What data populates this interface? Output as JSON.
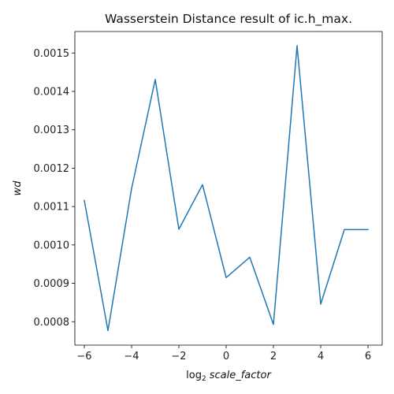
{
  "chart_data": {
    "type": "line",
    "title": "Wasserstein Distance result of ic.h_max.",
    "xlabel_prefix": "log",
    "xlabel_sub": "2",
    "xlabel_var": "scale_factor",
    "ylabel": "wd",
    "xlim": [
      -6.4,
      6.6
    ],
    "ylim": [
      0.000739,
      0.001556
    ],
    "x_ticks": [
      -6,
      -4,
      -2,
      0,
      2,
      4,
      6
    ],
    "x_tick_labels": [
      "−6",
      "−4",
      "−2",
      "0",
      "2",
      "4",
      "6"
    ],
    "y_ticks": [
      0.0008,
      0.0009,
      0.001,
      0.0011,
      0.0012,
      0.0013,
      0.0014,
      0.0015
    ],
    "y_tick_labels": [
      "0.0008",
      "0.0009",
      "0.0010",
      "0.0011",
      "0.0012",
      "0.0013",
      "0.0014",
      "0.0015"
    ],
    "grid": false,
    "series": [
      {
        "color": "#1f77b4",
        "x": [
          -6,
          -5,
          -4,
          -3,
          -2,
          -1,
          0,
          1,
          2,
          3,
          4,
          5,
          6
        ],
        "y": [
          0.001116,
          0.000777,
          0.001147,
          0.001431,
          0.001041,
          0.001157,
          0.000915,
          0.000968,
          0.000793,
          0.001519,
          0.000846,
          0.00104,
          0.00104
        ]
      }
    ]
  }
}
